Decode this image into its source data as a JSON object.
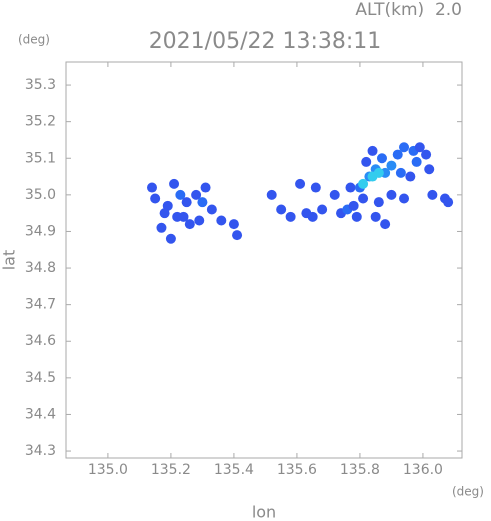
{
  "chart_data": {
    "type": "scatter",
    "title": "2021/05/22 13:38:11",
    "altitude_label": "ALT(km)  2.0",
    "x_unit": "(deg)",
    "y_unit": "(deg)",
    "x_label": "lon",
    "y_label": "lat",
    "xlim": [
      134.867,
      136.124
    ],
    "ylim": [
      34.281,
      35.363
    ],
    "xticks": [
      {
        "value": 135,
        "label": "135.0"
      },
      135.2,
      135.4,
      135.6,
      135.8,
      {
        "value": 136,
        "label": "136.0"
      }
    ],
    "yticks": [
      34.3,
      34.4,
      34.5,
      34.6,
      34.7,
      34.8,
      34.9,
      {
        "value": 35,
        "label": "35.0"
      },
      35.1,
      35.2,
      35.3
    ],
    "x": [
      135.14,
      135.15,
      135.19,
      135.21,
      135.23,
      135.25,
      135.22,
      135.18,
      135.28,
      135.3,
      135.29,
      135.31,
      135.33,
      135.26,
      135.24,
      135.36,
      135.4,
      135.41,
      135.2,
      135.17,
      135.52,
      135.55,
      135.58,
      135.63,
      135.65,
      135.68,
      135.61,
      135.66,
      135.72,
      135.74,
      135.76,
      135.77,
      135.78,
      135.8,
      135.81,
      135.79,
      135.83,
      135.85,
      135.87,
      135.86,
      135.88,
      135.9,
      135.92,
      135.94,
      135.97,
      135.99,
      135.93,
      135.96,
      135.98,
      136.01,
      136.02,
      135.9,
      135.94,
      136.03,
      136.07,
      136.08,
      135.84,
      135.82,
      135.88,
      135.85,
      135.84,
      135.86,
      135.81
    ],
    "values": [
      35.02,
      34.99,
      34.97,
      35.03,
      35.0,
      34.98,
      34.94,
      34.95,
      35.0,
      34.98,
      34.93,
      35.02,
      34.96,
      34.92,
      34.94,
      34.93,
      34.92,
      34.89,
      34.88,
      34.91,
      35.0,
      34.96,
      34.94,
      34.95,
      34.94,
      34.96,
      35.03,
      35.02,
      35.0,
      34.95,
      34.96,
      35.02,
      34.97,
      35.02,
      34.99,
      34.94,
      35.05,
      35.07,
      35.1,
      34.98,
      35.06,
      35.08,
      35.11,
      35.13,
      35.12,
      35.13,
      35.06,
      35.05,
      35.09,
      35.11,
      35.07,
      35.0,
      34.99,
      35.0,
      34.99,
      34.98,
      35.12,
      35.09,
      34.92,
      34.94,
      35.05,
      35.06,
      35.03
    ],
    "colors": [
      "#3355ee",
      "#3355ee",
      "#3355ee",
      "#3355ee",
      "#2a6cf5",
      "#3355ee",
      "#3355ee",
      "#3355ee",
      "#3355ee",
      "#2a6cf5",
      "#3355ee",
      "#3355ee",
      "#3355ee",
      "#3355ee",
      "#3355ee",
      "#3355ee",
      "#3355ee",
      "#3355ee",
      "#3355ee",
      "#3355ee",
      "#3355ee",
      "#3355ee",
      "#3355ee",
      "#3355ee",
      "#3355ee",
      "#3355ee",
      "#3355ee",
      "#3355ee",
      "#3355ee",
      "#3355ee",
      "#2a6cf5",
      "#3355ee",
      "#3355ee",
      "#2a6cf5",
      "#3355ee",
      "#3355ee",
      "#2a8cf5",
      "#2a8cf5",
      "#2a6cf5",
      "#3355ee",
      "#2a8cf5",
      "#2a8cf5",
      "#2a6cf5",
      "#2a6cf5",
      "#2a6cf5",
      "#3355ee",
      "#2a6cf5",
      "#3355ee",
      "#2a6cf5",
      "#3355ee",
      "#3355ee",
      "#3355ee",
      "#3355ee",
      "#3355ee",
      "#3355ee",
      "#3355ee",
      "#3355ee",
      "#3355ee",
      "#3355ee",
      "#3355ee",
      "#33ccee",
      "#33ccee",
      "#33ccee"
    ],
    "grid": false
  }
}
